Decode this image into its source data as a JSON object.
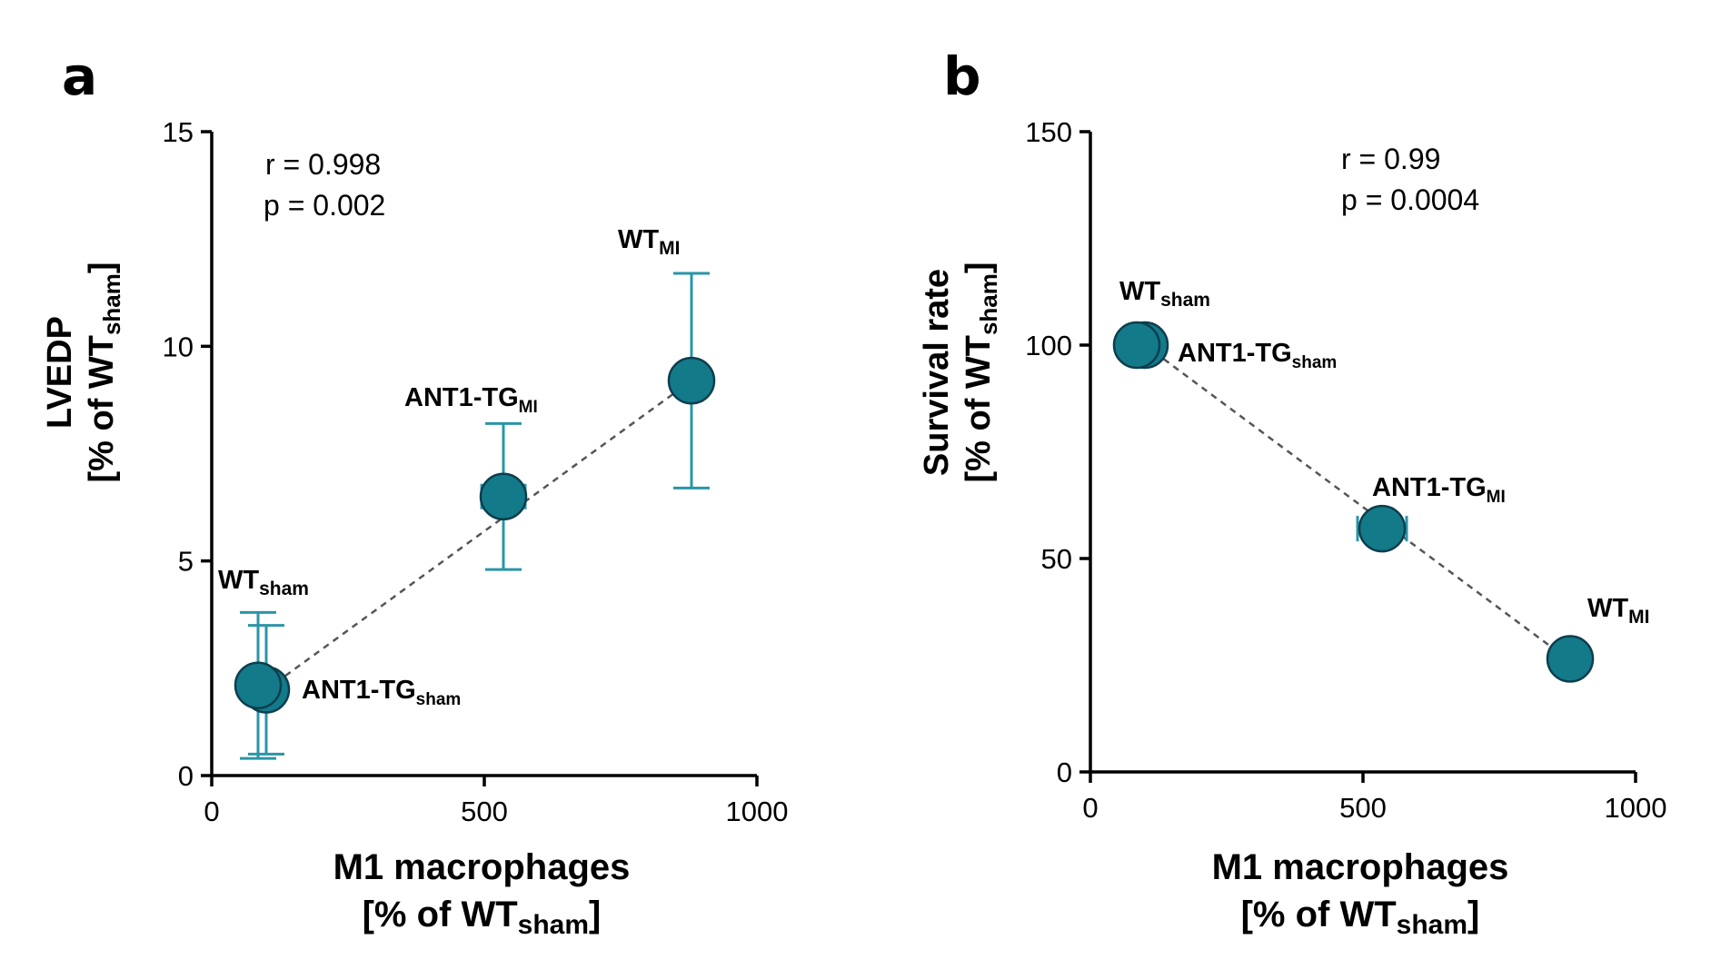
{
  "colors": {
    "marker": "#137a8a",
    "marker_edge": "#0d3e4d",
    "error_bar": "#2a95a8",
    "fit_line": "#555555"
  },
  "chart_data": [
    {
      "panel": "a",
      "type": "scatter",
      "ylabel_main": "LVEDP",
      "ylabel_unit": {
        "prefix": "[% of WT",
        "sub": "sham",
        "suffix": "]"
      },
      "xlabel_main": "M1 macrophages",
      "xlabel_unit": {
        "prefix": "[% of WT",
        "sub": "sham",
        "suffix": "]"
      },
      "xlim": [
        0,
        1000
      ],
      "ylim": [
        0,
        15
      ],
      "xticks": [
        "0",
        "500",
        "1000"
      ],
      "yticks": [
        "0",
        "5",
        "10",
        "15"
      ],
      "stats": {
        "r": "r = 0.998",
        "p": "p = 0.002"
      },
      "fit_line": {
        "x": [
          100,
          880
        ],
        "y": [
          2.0,
          9.2
        ]
      },
      "points": [
        {
          "group": "WT",
          "sub": "sham",
          "x": 85,
          "y": 2.1,
          "y_err": 1.7,
          "x_err": 0
        },
        {
          "group": "ANT1-TG",
          "sub": "sham",
          "x": 100,
          "y": 2.0,
          "y_err": 1.5,
          "x_err": 0
        },
        {
          "group": "ANT1-TG",
          "sub": "MI",
          "x": 535,
          "y": 6.5,
          "y_err": 1.7,
          "x_err": 40
        },
        {
          "group": "WT",
          "sub": "MI",
          "x": 880,
          "y": 9.2,
          "y_err": 2.5,
          "x_err": 0
        }
      ]
    },
    {
      "panel": "b",
      "type": "scatter",
      "ylabel_main": "Survival rate",
      "ylabel_unit": {
        "prefix": "[% of WT",
        "sub": "sham",
        "suffix": "]"
      },
      "xlabel_main": "M1 macrophages",
      "xlabel_unit": {
        "prefix": "[% of WT",
        "sub": "sham",
        "suffix": "]"
      },
      "xlim": [
        0,
        1000
      ],
      "ylim": [
        0,
        150
      ],
      "xticks": [
        "0",
        "500",
        "1000"
      ],
      "yticks": [
        "0",
        "50",
        "100",
        "150"
      ],
      "stats": {
        "r": "r =  0.99",
        "p": "p = 0.0004"
      },
      "fit_line": {
        "x": [
          100,
          880
        ],
        "y": [
          100,
          26
        ]
      },
      "points": [
        {
          "group": "WT",
          "sub": "sham",
          "x": 85,
          "y": 100,
          "y_err": 0,
          "x_err": 0
        },
        {
          "group": "ANT1-TG",
          "sub": "sham",
          "x": 100,
          "y": 100,
          "y_err": 0,
          "x_err": 0
        },
        {
          "group": "ANT1-TG",
          "sub": "MI",
          "x": 535,
          "y": 57,
          "y_err": 0,
          "x_err": 45
        },
        {
          "group": "WT",
          "sub": "MI",
          "x": 880,
          "y": 26.5,
          "y_err": 0,
          "x_err": 0
        }
      ]
    }
  ]
}
